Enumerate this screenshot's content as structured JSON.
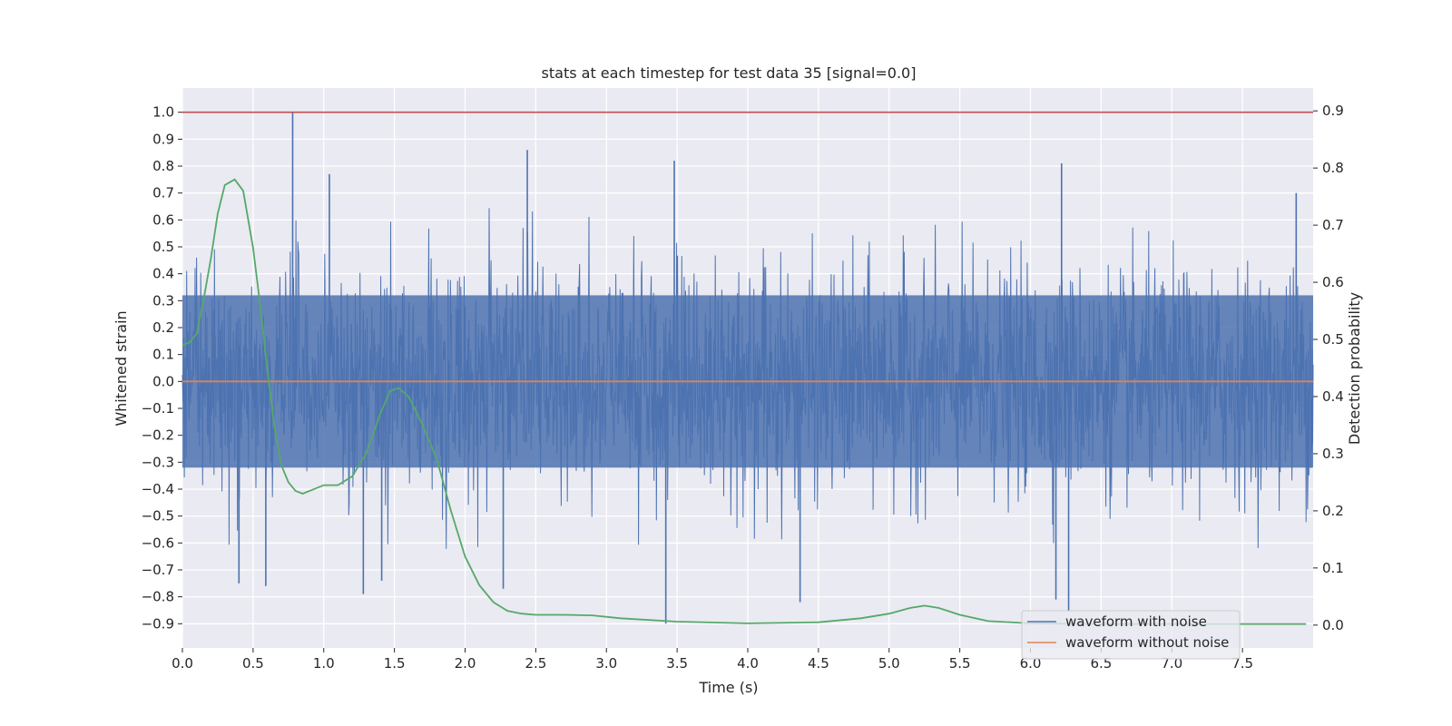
{
  "chart_data": {
    "type": "line",
    "title": "stats at each timestep for test data 35 [signal=0.0]",
    "xlabel": "Time (s)",
    "ylabel": "Whitened strain",
    "y2label": "Detection probability",
    "xlim": [
      0,
      8
    ],
    "ylim": [
      -0.99,
      1.09
    ],
    "y2lim": [
      -0.04,
      0.94
    ],
    "x_ticks": [
      0.0,
      0.5,
      1.0,
      1.5,
      2.0,
      2.5,
      3.0,
      3.5,
      4.0,
      4.5,
      5.0,
      5.5,
      6.0,
      6.5,
      7.0,
      7.5
    ],
    "x_tick_labels": [
      "0.0",
      "0.5",
      "1.0",
      "1.5",
      "2.0",
      "2.5",
      "3.0",
      "3.5",
      "4.0",
      "4.5",
      "5.0",
      "5.5",
      "6.0",
      "6.5",
      "7.0",
      "7.5"
    ],
    "y_ticks": [
      -0.9,
      -0.8,
      -0.7,
      -0.6,
      -0.5,
      -0.4,
      -0.3,
      -0.2,
      -0.1,
      0.0,
      0.1,
      0.2,
      0.3,
      0.4,
      0.5,
      0.6,
      0.7,
      0.8,
      0.9,
      1.0
    ],
    "y_tick_labels": [
      "−0.9",
      "−0.8",
      "−0.7",
      "−0.6",
      "−0.5",
      "−0.4",
      "−0.3",
      "−0.2",
      "−0.1",
      "0.0",
      "0.1",
      "0.2",
      "0.3",
      "0.4",
      "0.5",
      "0.6",
      "0.7",
      "0.8",
      "0.9",
      "1.0"
    ],
    "y2_ticks": [
      0.0,
      0.1,
      0.2,
      0.3,
      0.4,
      0.5,
      0.6,
      0.7,
      0.8,
      0.9
    ],
    "y2_tick_labels": [
      "0.0",
      "0.1",
      "0.2",
      "0.3",
      "0.4",
      "0.5",
      "0.6",
      "0.7",
      "0.8",
      "0.9"
    ],
    "grid": true,
    "legend_position": "bottom-right",
    "series": [
      {
        "name": "waveform with noise",
        "axis": "left",
        "color": "#4c72b0",
        "style": "dense noise, amplitude roughly ±0.45 with spikes",
        "spikes": [
          {
            "x": 0.78,
            "y": 1.0
          },
          {
            "x": 2.44,
            "y": 0.86
          },
          {
            "x": 3.48,
            "y": 0.82
          },
          {
            "x": 6.22,
            "y": 0.81
          },
          {
            "x": 7.88,
            "y": 0.7
          },
          {
            "x": 1.04,
            "y": 0.77
          },
          {
            "x": 0.4,
            "y": -0.75
          },
          {
            "x": 0.59,
            "y": -0.76
          },
          {
            "x": 1.28,
            "y": -0.79
          },
          {
            "x": 1.41,
            "y": -0.74
          },
          {
            "x": 3.42,
            "y": -0.9
          },
          {
            "x": 4.37,
            "y": -0.82
          },
          {
            "x": 6.27,
            "y": -0.85
          },
          {
            "x": 2.27,
            "y": -0.77
          },
          {
            "x": 6.18,
            "y": -0.81
          }
        ]
      },
      {
        "name": "waveform without noise",
        "axis": "left",
        "color": "#dd8452",
        "x": [
          0,
          8
        ],
        "y": [
          0.0,
          0.0
        ]
      },
      {
        "name": "detection probability",
        "axis": "right",
        "color": "#55a868",
        "x": [
          0.0,
          0.05,
          0.1,
          0.15,
          0.2,
          0.25,
          0.3,
          0.37,
          0.43,
          0.5,
          0.55,
          0.6,
          0.65,
          0.7,
          0.75,
          0.8,
          0.85,
          0.9,
          1.0,
          1.1,
          1.2,
          1.3,
          1.4,
          1.47,
          1.53,
          1.6,
          1.7,
          1.8,
          1.9,
          2.0,
          2.1,
          2.2,
          2.3,
          2.4,
          2.5,
          2.7,
          2.9,
          3.1,
          3.5,
          4.0,
          4.5,
          4.8,
          5.0,
          5.15,
          5.25,
          5.35,
          5.5,
          5.7,
          6.0,
          6.5,
          7.0,
          7.5,
          7.95
        ],
        "y": [
          0.49,
          0.495,
          0.51,
          0.57,
          0.64,
          0.72,
          0.77,
          0.78,
          0.76,
          0.66,
          0.56,
          0.45,
          0.35,
          0.28,
          0.25,
          0.235,
          0.23,
          0.235,
          0.245,
          0.245,
          0.26,
          0.3,
          0.37,
          0.41,
          0.415,
          0.4,
          0.35,
          0.29,
          0.2,
          0.12,
          0.07,
          0.04,
          0.025,
          0.02,
          0.018,
          0.018,
          0.017,
          0.012,
          0.006,
          0.003,
          0.005,
          0.012,
          0.02,
          0.03,
          0.034,
          0.03,
          0.018,
          0.007,
          0.003,
          0.002,
          0.002,
          0.002,
          0.002
        ]
      }
    ],
    "threshold_line": {
      "axis": "left",
      "y": 1.0,
      "color": "#c44e52"
    }
  }
}
